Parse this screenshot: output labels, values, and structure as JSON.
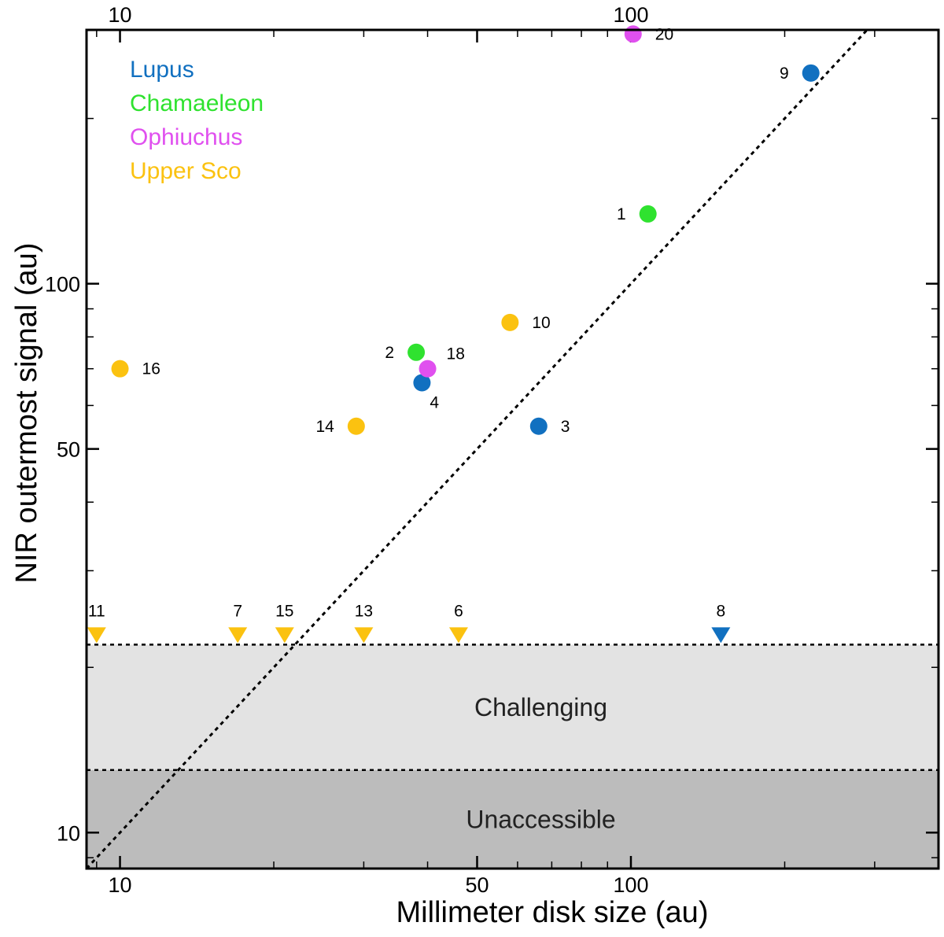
{
  "chart_data": {
    "type": "scatter",
    "xlabel": "Millimeter disk size (au)",
    "ylabel": "NIR outermost signal (au)",
    "xscale": "log",
    "yscale": "log",
    "xlim": [
      8.6,
      400
    ],
    "ylim": [
      8.6,
      290
    ],
    "x_ticklabels_bottom": [
      {
        "value": 10,
        "label": "10"
      },
      {
        "value": 50,
        "label": "50"
      },
      {
        "value": 100,
        "label": "100"
      }
    ],
    "x_ticklabels_top": [
      {
        "value": 10,
        "label": "10"
      },
      {
        "value": 100,
        "label": "100"
      }
    ],
    "y_ticklabels": [
      {
        "value": 10,
        "label": "10"
      },
      {
        "value": 50,
        "label": "50"
      },
      {
        "value": 100,
        "label": "100"
      }
    ],
    "reference_line": {
      "type": "one-to-one",
      "style": "dotted"
    },
    "regions": [
      {
        "name": "Challenging",
        "y_range": [
          13,
          22
        ],
        "color": "#e3e3e3"
      },
      {
        "name": "Unaccessible",
        "y_range": [
          8.6,
          13
        ],
        "color": "#bcbcbc"
      }
    ],
    "legend": {
      "position": "top-left",
      "entries": [
        {
          "name": "Lupus",
          "color": "#1170c0"
        },
        {
          "name": "Chamaeleon",
          "color": "#2fe22f"
        },
        {
          "name": "Ophiuchus",
          "color": "#e050ef"
        },
        {
          "name": "Upper Sco",
          "color": "#fbc210"
        }
      ]
    },
    "series": [
      {
        "name": "Lupus",
        "color": "#1170c0",
        "points": [
          {
            "id": "9",
            "x": 225,
            "y": 242,
            "label_side": "left"
          },
          {
            "id": "4",
            "x": 39,
            "y": 66,
            "label_side": "below-right"
          },
          {
            "id": "3",
            "x": 66,
            "y": 55,
            "label_side": "right"
          }
        ]
      },
      {
        "name": "Chamaeleon",
        "color": "#2fe22f",
        "points": [
          {
            "id": "1",
            "x": 108,
            "y": 134,
            "label_side": "left"
          },
          {
            "id": "2",
            "x": 38,
            "y": 75,
            "label_side": "left"
          }
        ]
      },
      {
        "name": "Ophiuchus",
        "color": "#e050ef",
        "points": [
          {
            "id": "20",
            "x": 101,
            "y": 285,
            "label_side": "right"
          },
          {
            "id": "18",
            "x": 40,
            "y": 70,
            "label_side": "upper-right"
          }
        ]
      },
      {
        "name": "Upper Sco",
        "color": "#fbc210",
        "points": [
          {
            "id": "10",
            "x": 58,
            "y": 85,
            "label_side": "right"
          },
          {
            "id": "16",
            "x": 10,
            "y": 70,
            "label_side": "right"
          },
          {
            "id": "14",
            "x": 29,
            "y": 55,
            "label_side": "left"
          }
        ]
      }
    ],
    "upper_limits": [
      {
        "id": "11",
        "x": 9,
        "y": 22,
        "color": "#fbc210"
      },
      {
        "id": "7",
        "x": 17,
        "y": 22,
        "color": "#fbc210"
      },
      {
        "id": "15",
        "x": 21,
        "y": 22,
        "color": "#fbc210"
      },
      {
        "id": "13",
        "x": 30,
        "y": 22,
        "color": "#fbc210"
      },
      {
        "id": "6",
        "x": 46,
        "y": 22,
        "color": "#fbc210"
      },
      {
        "id": "8",
        "x": 150,
        "y": 22,
        "color": "#1170c0"
      }
    ]
  }
}
